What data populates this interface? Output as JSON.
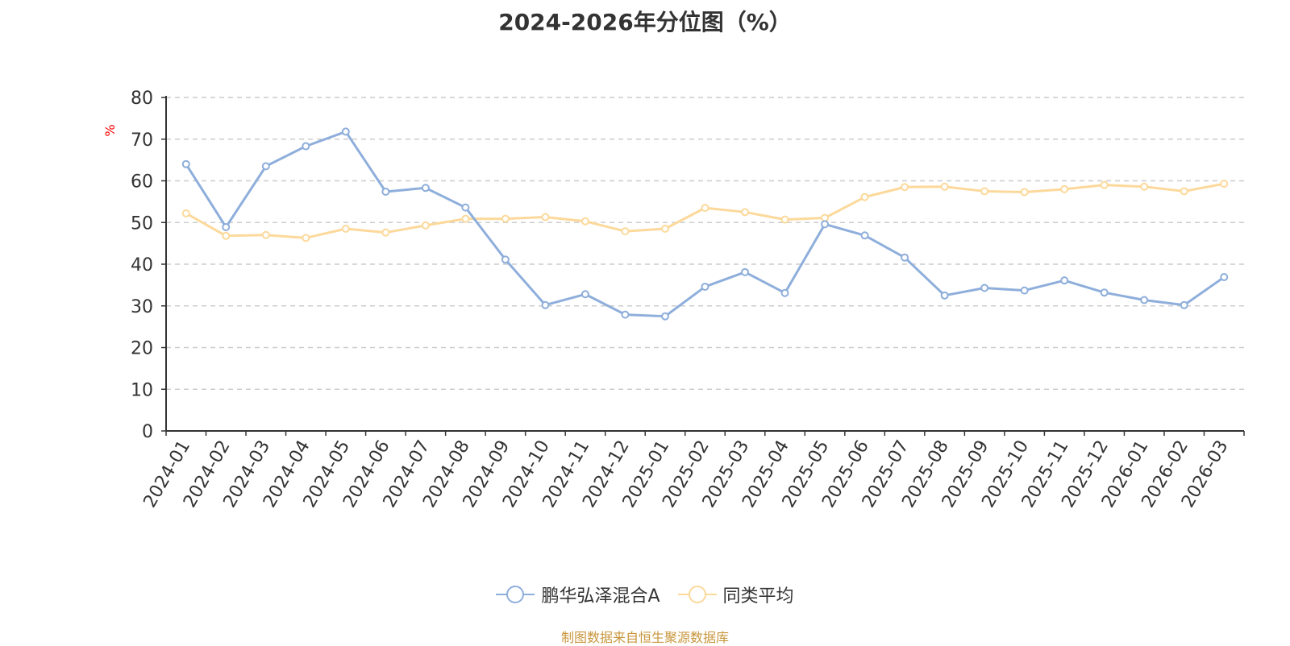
{
  "title": "2024-2026年分位图（%）",
  "footer": "制图数据来自恒生聚源数据库",
  "colors": {
    "series1": "#8eaedb",
    "series2": "#fcd99b",
    "unit": "#ff0000",
    "footer": "#c8963c",
    "grid": "#cccccc",
    "axis": "#333333"
  },
  "legend": [
    {
      "name": "鹏华弘泽混合A"
    },
    {
      "name": "同类平均"
    }
  ],
  "chart_data": {
    "type": "line",
    "title": "2024-2026年分位图（%）",
    "ylabel": "%",
    "ylim": [
      0,
      80
    ],
    "yticks": [
      0,
      10,
      20,
      30,
      40,
      50,
      60,
      70,
      80
    ],
    "grid": true,
    "legend_position": "bottom",
    "categories": [
      "2024-01",
      "2024-02",
      "2024-03",
      "2024-04",
      "2024-05",
      "2024-06",
      "2024-07",
      "2024-08",
      "2024-09",
      "2024-10",
      "2024-11",
      "2024-12",
      "2025-01",
      "2025-02",
      "2025-03",
      "2025-04",
      "2025-05",
      "2025-06",
      "2025-07",
      "2025-08",
      "2025-09",
      "2025-10",
      "2025-11",
      "2025-12",
      "2026-01",
      "2026-02",
      "2026-03"
    ],
    "series": [
      {
        "name": "鹏华弘泽混合A",
        "color": "#8eaedb",
        "values": [
          64,
          48.9,
          63.5,
          68.3,
          71.8,
          57.4,
          58.3,
          53.6,
          41.1,
          30.2,
          32.8,
          27.9,
          27.5,
          34.6,
          38.1,
          33.1,
          49.6,
          46.9,
          41.6,
          32.5,
          34.3,
          33.7,
          36.1,
          33.2,
          31.4,
          30.2,
          36.9
        ]
      },
      {
        "name": "同类平均",
        "color": "#fcd99b",
        "values": [
          52.2,
          46.8,
          47,
          46.3,
          48.5,
          47.6,
          49.3,
          50.9,
          50.9,
          51.3,
          50.3,
          47.9,
          48.5,
          53.5,
          52.5,
          50.7,
          51.1,
          56.1,
          58.5,
          58.6,
          57.5,
          57.3,
          58,
          59,
          58.6,
          57.5,
          59.3
        ]
      }
    ]
  }
}
